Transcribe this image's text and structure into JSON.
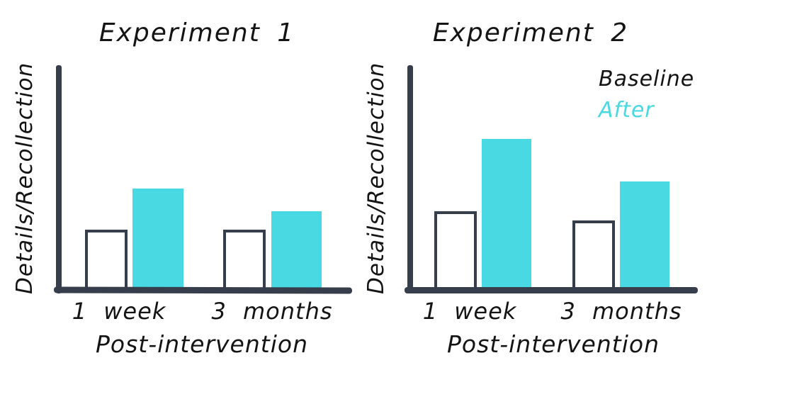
{
  "figure": {
    "background": "#ffffff"
  },
  "colors": {
    "after_cyan": "#49d9e2",
    "axis_dark": "#363d4b",
    "text_black": "#141414"
  },
  "chart_data": [
    {
      "type": "bar",
      "title": "Experiment 1",
      "xlabel": "Post-intervention",
      "ylabel": "Details/Recollection",
      "categories": [
        "1 week",
        "3 months"
      ],
      "series": [
        {
          "name": "Baseline",
          "values": [
            27,
            27
          ],
          "fill": "#ffffff",
          "outline": "#363d4b"
        },
        {
          "name": "After",
          "values": [
            45,
            35
          ],
          "fill": "#49d9e2",
          "outline": "none"
        }
      ],
      "ylim": [
        0,
        100
      ],
      "value_scale": "percent-of-axis-height (no numeric ticks shown)",
      "grid": false,
      "legend": false
    },
    {
      "type": "bar",
      "title": "Experiment 2",
      "xlabel": "Post-intervention",
      "ylabel": "Details/Recollection",
      "categories": [
        "1 week",
        "3 months"
      ],
      "series": [
        {
          "name": "Baseline",
          "values": [
            35,
            31
          ],
          "fill": "#ffffff",
          "outline": "#363d4b"
        },
        {
          "name": "After",
          "values": [
            67,
            48
          ],
          "fill": "#49d9e2",
          "outline": "none"
        }
      ],
      "ylim": [
        0,
        100
      ],
      "value_scale": "percent-of-axis-height (no numeric ticks shown)",
      "grid": false,
      "legend": true,
      "legend_position": "top-right"
    }
  ]
}
